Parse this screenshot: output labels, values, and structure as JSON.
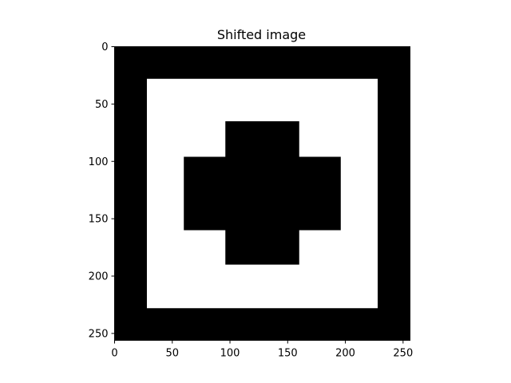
{
  "chart_data": {
    "type": "heatmap",
    "title": "Shifted image",
    "xlabel": "",
    "ylabel": "",
    "image_size": [
      256,
      256
    ],
    "xlim": [
      0,
      256
    ],
    "ylim": [
      256,
      0
    ],
    "xticks": [
      0,
      50,
      100,
      150,
      200,
      250
    ],
    "yticks": [
      0,
      50,
      100,
      150,
      200,
      250
    ],
    "xtick_labels": [
      "0",
      "50",
      "100",
      "150",
      "200",
      "250"
    ],
    "ytick_labels": [
      "0",
      "50",
      "100",
      "150",
      "200",
      "250"
    ],
    "colormap": "gray",
    "background_value": 0,
    "background_color": "#000000",
    "regions": [
      {
        "name": "white-square",
        "value": 1,
        "color": "#ffffff",
        "x": [
          28,
          228
        ],
        "y": [
          28,
          228
        ]
      },
      {
        "name": "cross-horizontal-bar",
        "value": 0,
        "color": "#000000",
        "x": [
          60,
          196
        ],
        "y": [
          96,
          160
        ]
      },
      {
        "name": "cross-vertical-bar",
        "value": 0,
        "color": "#000000",
        "x": [
          96,
          160
        ],
        "y": [
          65,
          190
        ]
      }
    ],
    "grid": false,
    "legend": "none"
  }
}
